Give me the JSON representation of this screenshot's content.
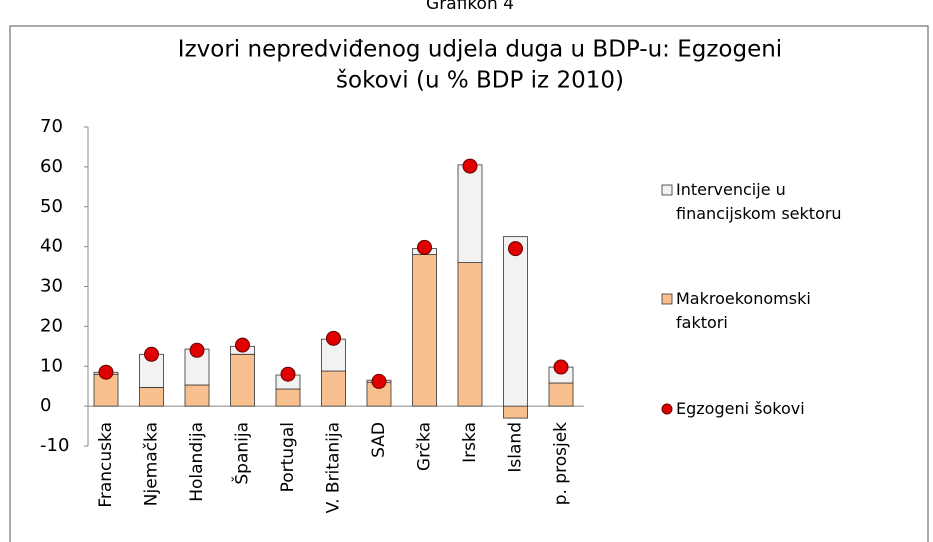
{
  "header": "Grafikon 4",
  "chart_data": {
    "type": "bar",
    "stacked": true,
    "title": [
      "Izvori nepredviđenog udjela duga u BDP-u: Egzogeni",
      "šokovi  (u % BDP iz 2010)"
    ],
    "categories": [
      "Francuska",
      "Njemačka",
      "Holandija",
      "Španija",
      "Portugal",
      "V. Britanija",
      "SAD",
      "Grčka",
      "Irska",
      "Island",
      "p. prosjek"
    ],
    "series": [
      {
        "name": "Intervencije u financijskom sektoru",
        "kind": "bar",
        "color": "#f2f2f2",
        "values": [
          0.5,
          8.3,
          9,
          2,
          3.5,
          8,
          0.5,
          1.5,
          24.5,
          42.5,
          4
        ]
      },
      {
        "name": "Makroekonomski faktori",
        "kind": "bar",
        "color": "#f9c08f",
        "values": [
          8,
          4.7,
          5.3,
          13,
          4.3,
          8.8,
          6,
          38,
          36,
          -3,
          5.8
        ]
      },
      {
        "name": "Egzogeni šokovi",
        "kind": "dot",
        "color": "#e00000",
        "values": [
          8.5,
          13,
          14,
          15.3,
          8,
          17,
          6.2,
          39.8,
          60.2,
          39.5,
          9.8
        ]
      }
    ],
    "ylim": [
      -10,
      70
    ],
    "yticks": [
      -10,
      0,
      10,
      20,
      30,
      40,
      50,
      60,
      70
    ],
    "grid": false
  }
}
